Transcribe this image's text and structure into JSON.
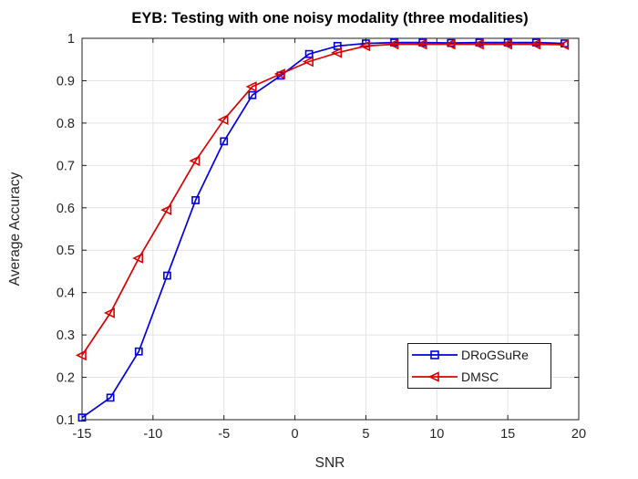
{
  "figure": {
    "title": "EYB: Testing with one noisy modality (three modalities)",
    "xlabel": "SNR",
    "ylabel": "Average Accuracy"
  },
  "chart_data": {
    "type": "line",
    "title": "EYB: Testing with one noisy modality (three modalities)",
    "xlabel": "SNR",
    "ylabel": "Average Accuracy",
    "x": [
      -15,
      -13,
      -11,
      -9,
      -7,
      -5,
      -3,
      -1,
      1,
      3,
      5,
      7,
      9,
      11,
      13,
      15,
      17,
      19
    ],
    "series": [
      {
        "name": "DRoGSuRe",
        "color": "#0000E0",
        "marker": "square",
        "values": [
          0.105,
          0.152,
          0.261,
          0.44,
          0.618,
          0.757,
          0.866,
          0.912,
          0.963,
          0.982,
          0.988,
          0.99,
          0.99,
          0.989,
          0.99,
          0.99,
          0.99,
          0.988
        ]
      },
      {
        "name": "DMSC",
        "color": "#D90000",
        "marker": "triangle-left",
        "values": [
          0.252,
          0.352,
          0.481,
          0.595,
          0.711,
          0.808,
          0.886,
          0.916,
          0.945,
          0.966,
          0.982,
          0.986,
          0.986,
          0.986,
          0.986,
          0.986,
          0.986,
          0.985
        ]
      }
    ],
    "xlim": [
      -15,
      20
    ],
    "ylim": [
      0.1,
      1
    ],
    "xticks": [
      -15,
      -10,
      -5,
      0,
      5,
      10,
      15,
      20
    ],
    "xtick_labels": [
      "-15",
      "-10",
      "-5",
      "0",
      "5",
      "10",
      "15",
      "20"
    ],
    "yticks": [
      0.1,
      0.2,
      0.3,
      0.4,
      0.5,
      0.6,
      0.7,
      0.8,
      0.9,
      1
    ],
    "ytick_labels": [
      "0.1",
      "0.2",
      "0.3",
      "0.4",
      "0.5",
      "0.6",
      "0.7",
      "0.8",
      "0.9",
      "1"
    ],
    "grid": true,
    "legend_position": "inside-lower-right",
    "colors": {
      "grid": "#e3e3e3",
      "axis": "#1f1f1f",
      "tick_label": "#262626",
      "title": "#000000",
      "background": "#ffffff"
    }
  }
}
